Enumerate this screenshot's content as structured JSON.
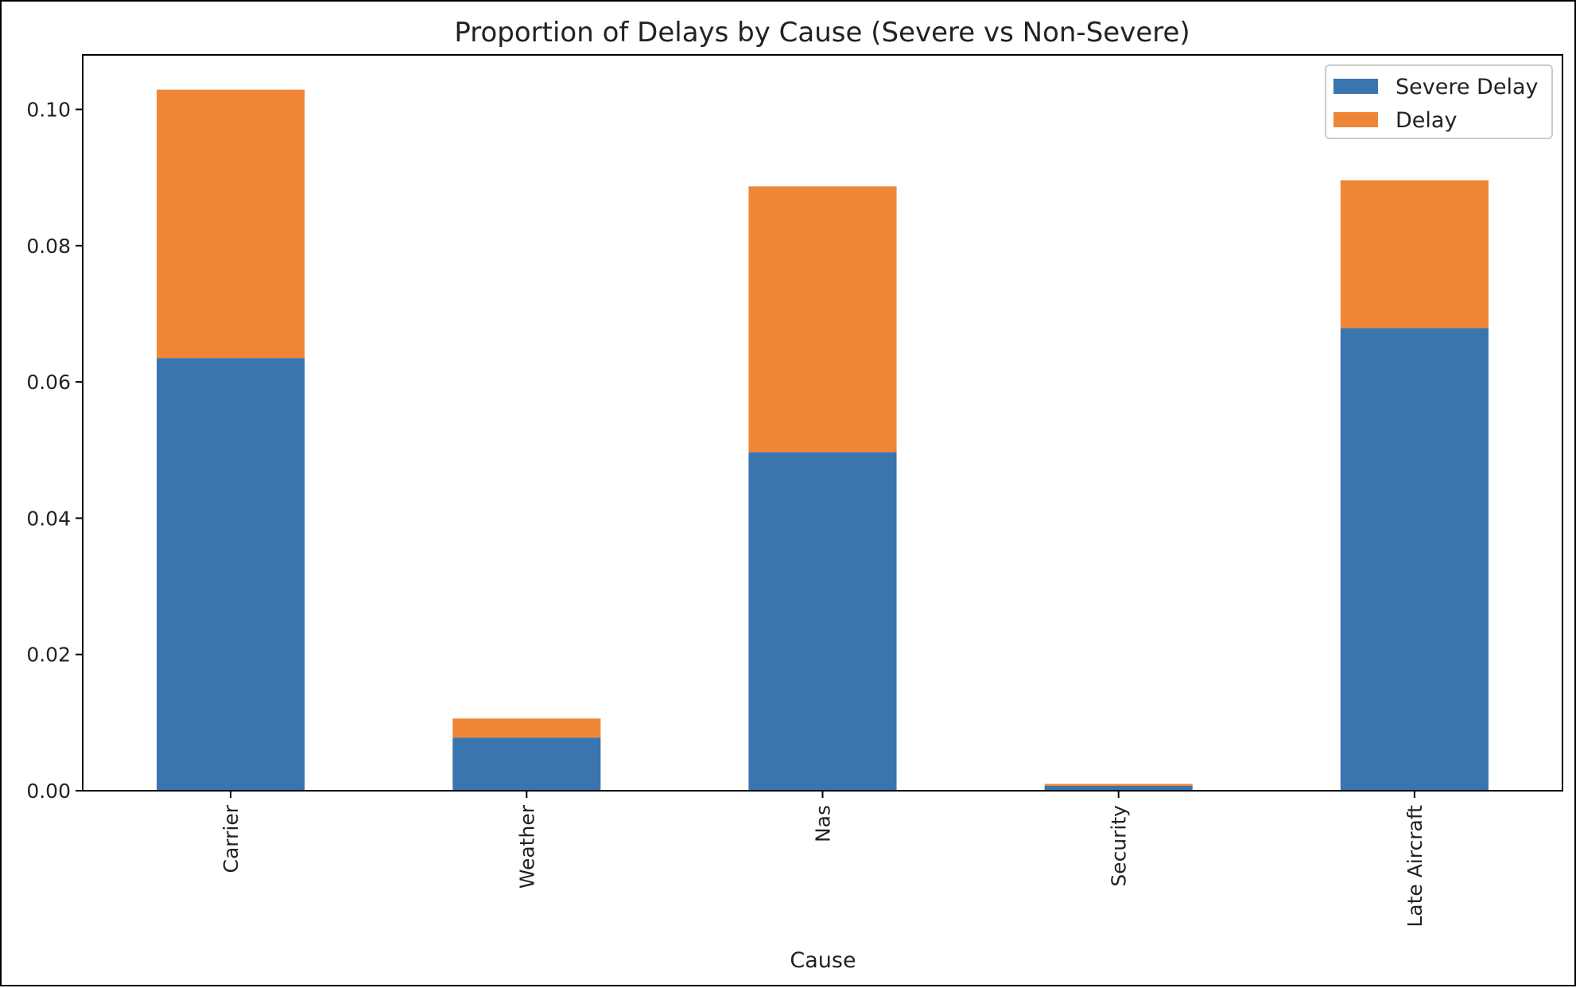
{
  "chart_data": {
    "type": "bar",
    "stacked": true,
    "title": "Proportion of Delays by Cause (Severe vs Non-Severe)",
    "xlabel": "Cause",
    "ylabel": "",
    "categories": [
      "Carrier",
      "Weather",
      "Nas",
      "Security",
      "Late Aircraft"
    ],
    "series": [
      {
        "name": "Severe Delay",
        "color": "#3b75af",
        "values": [
          0.0635,
          0.0078,
          0.0497,
          0.0007,
          0.0679
        ]
      },
      {
        "name": "Delay",
        "color": "#ef8636",
        "values": [
          0.0394,
          0.0028,
          0.039,
          0.0003,
          0.0217
        ]
      }
    ],
    "ylim": [
      0,
      0.108
    ],
    "yticks": [
      "0.00",
      "0.02",
      "0.04",
      "0.06",
      "0.08",
      "0.10"
    ],
    "ytick_values": [
      0,
      0.02,
      0.04,
      0.06,
      0.08,
      0.1
    ],
    "grid": false,
    "legend_position": "top-right"
  }
}
